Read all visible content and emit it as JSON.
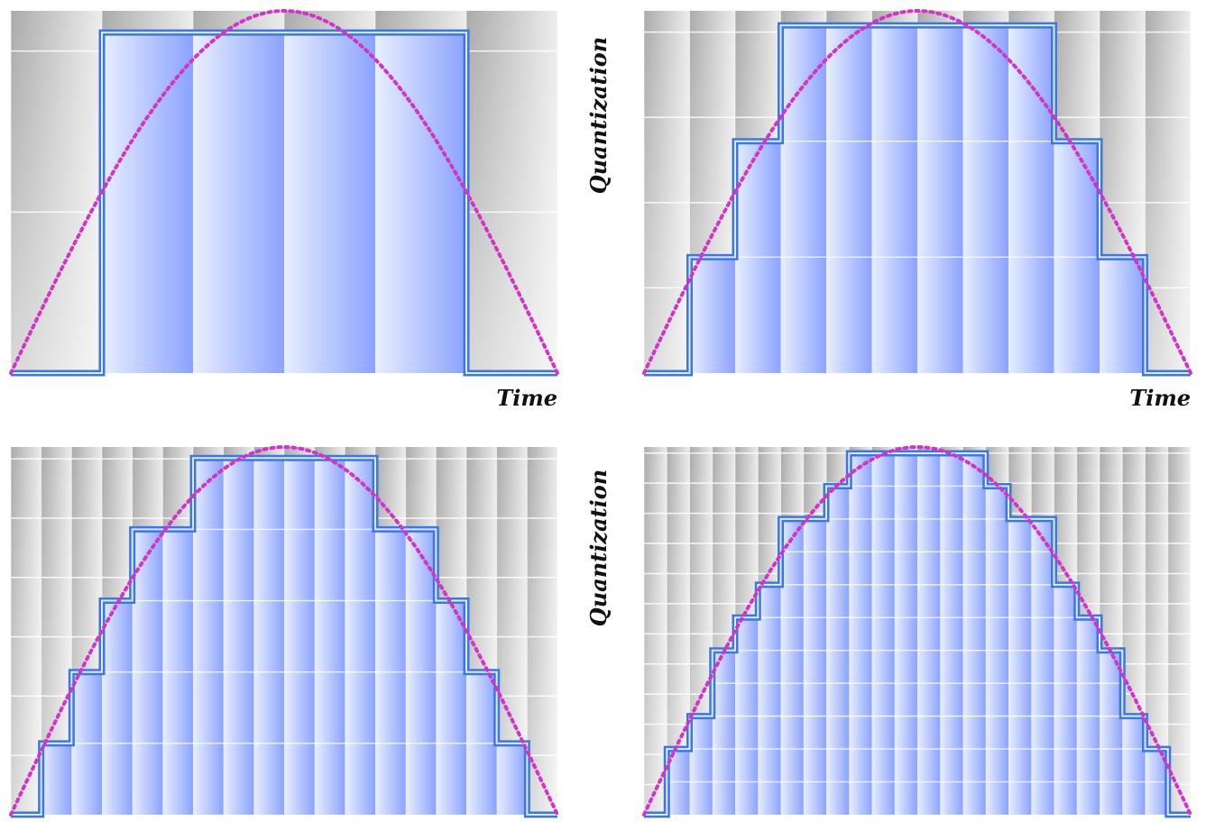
{
  "labels": {
    "time_axis": "Time",
    "quantization_axis": "Quantization"
  },
  "colors": {
    "background_top": "#a2a2a2",
    "background_bottom": "#f2f2f2",
    "fill_dark": "#8ea4ff",
    "fill_light": "#e6eeff",
    "step_outline": "#3d78e0",
    "curve": "#d234c8"
  },
  "panels": [
    {
      "id": "panel-1",
      "quantization_levels": 2,
      "sample_intervals": 6
    },
    {
      "id": "panel-2",
      "quantization_levels": 4,
      "sample_intervals": 12
    },
    {
      "id": "panel-3",
      "quantization_levels": 6,
      "sample_intervals": 18
    },
    {
      "id": "panel-4",
      "quantization_levels": 12,
      "sample_intervals": 24
    }
  ]
}
